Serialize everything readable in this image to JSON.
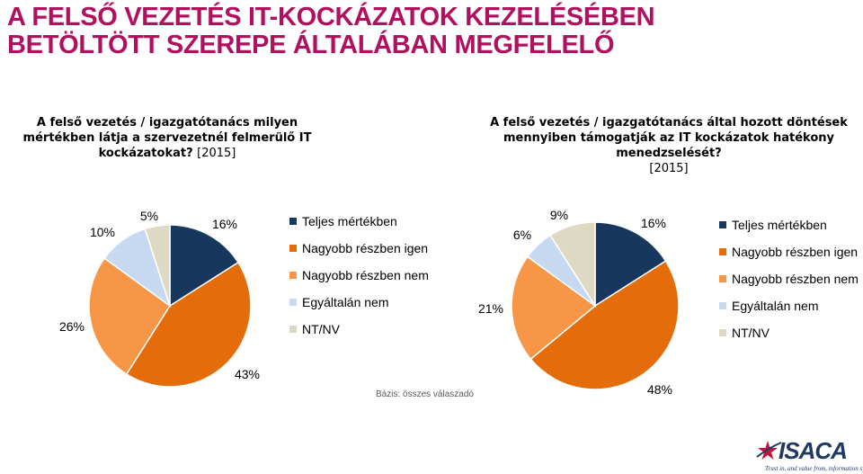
{
  "title_line1": "A FELSŐ VEZETÉS IT-KOCKÁZATOK KEZELÉSÉBEN",
  "title_line2": "BETÖLTÖTT SZEREPE ÁLTALÁBAN MEGFELELŐ",
  "base_note": "Bázis: összes válaszadó",
  "logo": {
    "word": "ISACA",
    "tagline": "Trust in, and value from, information systems",
    "icon": "isaca-star-swoosh-icon"
  },
  "colors": {
    "title": "#b0105e",
    "teljes": "#17375e",
    "nagyobb_igen": "#e46c0a",
    "nagyobb_nem": "#f79646",
    "egyaltalan": "#c6d9f1",
    "ntnv": "#ddd9c3"
  },
  "chart_data": [
    {
      "type": "pie",
      "question": "A felső vezetés / igazgatótanács milyen mértékben látja a szervezetnél felmerülő IT kockázatokat?",
      "year": "[2015]",
      "categories": [
        "Teljes mértékben",
        "Nagyobb részben igen",
        "Nagyobb részben nem",
        "Egyáltalán nem",
        "NT/NV"
      ],
      "values": [
        16,
        43,
        26,
        10,
        5
      ],
      "value_labels": [
        "16%",
        "43%",
        "26%",
        "10%",
        "5%"
      ],
      "legend_position": "right"
    },
    {
      "type": "pie",
      "question": "A felső vezetés / igazgatótanács által hozott döntések mennyiben támogatják az IT kockázatok hatékony menedzselését?",
      "year": "[2015]",
      "categories": [
        "Teljes mértékben",
        "Nagyobb részben igen",
        "Nagyobb részben nem",
        "Egyáltalán nem",
        "NT/NV"
      ],
      "values": [
        16,
        48,
        21,
        6,
        9
      ],
      "value_labels": [
        "16%",
        "48%",
        "21%",
        "6%",
        "9%"
      ],
      "legend_position": "right"
    }
  ]
}
